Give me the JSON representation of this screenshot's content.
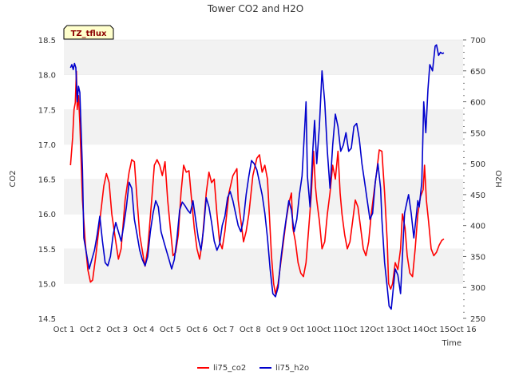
{
  "chart_data": {
    "type": "line",
    "title": "Tower CO2 and H2O",
    "badge": "TZ_tflux",
    "xlabel": "Time",
    "ylabel_left": "CO2",
    "ylabel_right": "H2O",
    "x_ticks": [
      {
        "day": 1,
        "label": "Oct 1"
      },
      {
        "day": 2,
        "label": "Oct 2"
      },
      {
        "day": 3,
        "label": "Oct 3"
      },
      {
        "day": 4,
        "label": "Oct 4"
      },
      {
        "day": 5,
        "label": "Oct 5"
      },
      {
        "day": 6,
        "label": "Oct 6"
      },
      {
        "day": 7,
        "label": "Oct 7"
      },
      {
        "day": 8,
        "label": "Oct 8"
      },
      {
        "day": 9,
        "label": "Oct 9"
      },
      {
        "day": 10,
        "label": "Oct 10"
      },
      {
        "day": 11,
        "label": "Oct 11"
      },
      {
        "day": 12,
        "label": "Oct 12"
      },
      {
        "day": 13,
        "label": "Oct 13"
      },
      {
        "day": 14,
        "label": "Oct 14"
      },
      {
        "day": 15,
        "label": "Oct 15"
      },
      {
        "day": 16,
        "label": "Oct 16"
      }
    ],
    "xlim": [
      1,
      16
    ],
    "ylim_left": [
      14.5,
      18.5
    ],
    "ylim_right": [
      250,
      700
    ],
    "yticks_left": [
      "14.5",
      "15.0",
      "15.5",
      "16.0",
      "16.5",
      "17.0",
      "17.5",
      "18.0",
      "18.5"
    ],
    "yticks_right": [
      "250",
      "300",
      "350",
      "400",
      "450",
      "500",
      "550",
      "600",
      "650",
      "700"
    ],
    "grid": "horizontal bands",
    "legend_position": "bottom-center",
    "series": [
      {
        "name": "li75_co2",
        "axis": "left",
        "color": "#ff0000",
        "points": [
          [
            1.25,
            16.7
          ],
          [
            1.33,
            17.1
          ],
          [
            1.38,
            17.5
          ],
          [
            1.43,
            17.6
          ],
          [
            1.47,
            18.05
          ],
          [
            1.5,
            17.5
          ],
          [
            1.55,
            17.7
          ],
          [
            1.6,
            17.3
          ],
          [
            1.7,
            16.2
          ],
          [
            1.8,
            15.6
          ],
          [
            1.9,
            15.2
          ],
          [
            2.0,
            15.02
          ],
          [
            2.08,
            15.05
          ],
          [
            2.2,
            15.4
          ],
          [
            2.35,
            15.9
          ],
          [
            2.5,
            16.4
          ],
          [
            2.6,
            16.58
          ],
          [
            2.7,
            16.45
          ],
          [
            2.8,
            16.0
          ],
          [
            2.95,
            15.6
          ],
          [
            3.05,
            15.35
          ],
          [
            3.15,
            15.5
          ],
          [
            3.3,
            16.2
          ],
          [
            3.45,
            16.6
          ],
          [
            3.55,
            16.78
          ],
          [
            3.65,
            16.75
          ],
          [
            3.75,
            16.2
          ],
          [
            3.85,
            15.7
          ],
          [
            4.0,
            15.35
          ],
          [
            4.05,
            15.25
          ],
          [
            4.15,
            15.5
          ],
          [
            4.3,
            16.2
          ],
          [
            4.4,
            16.7
          ],
          [
            4.5,
            16.78
          ],
          [
            4.6,
            16.7
          ],
          [
            4.7,
            16.55
          ],
          [
            4.8,
            16.75
          ],
          [
            4.9,
            16.2
          ],
          [
            5.0,
            15.8
          ],
          [
            5.1,
            15.4
          ],
          [
            5.2,
            15.45
          ],
          [
            5.3,
            15.7
          ],
          [
            5.4,
            16.3
          ],
          [
            5.5,
            16.7
          ],
          [
            5.6,
            16.6
          ],
          [
            5.7,
            16.62
          ],
          [
            5.8,
            16.2
          ],
          [
            5.9,
            15.8
          ],
          [
            6.0,
            15.5
          ],
          [
            6.1,
            15.35
          ],
          [
            6.2,
            15.6
          ],
          [
            6.35,
            16.3
          ],
          [
            6.45,
            16.6
          ],
          [
            6.55,
            16.45
          ],
          [
            6.65,
            16.5
          ],
          [
            6.75,
            16.0
          ],
          [
            6.85,
            15.6
          ],
          [
            6.95,
            15.5
          ],
          [
            7.05,
            15.75
          ],
          [
            7.2,
            16.3
          ],
          [
            7.35,
            16.55
          ],
          [
            7.5,
            16.65
          ],
          [
            7.55,
            16.2
          ],
          [
            7.65,
            15.9
          ],
          [
            7.75,
            15.6
          ],
          [
            7.85,
            15.75
          ],
          [
            7.95,
            16.0
          ],
          [
            8.1,
            16.55
          ],
          [
            8.25,
            16.8
          ],
          [
            8.35,
            16.85
          ],
          [
            8.45,
            16.6
          ],
          [
            8.55,
            16.7
          ],
          [
            8.65,
            16.5
          ],
          [
            8.72,
            16.0
          ],
          [
            8.8,
            15.4
          ],
          [
            8.88,
            15.0
          ],
          [
            8.95,
            14.85
          ],
          [
            9.05,
            15.0
          ],
          [
            9.15,
            15.3
          ],
          [
            9.25,
            15.6
          ],
          [
            9.35,
            15.9
          ],
          [
            9.45,
            16.15
          ],
          [
            9.55,
            16.3
          ],
          [
            9.6,
            15.8
          ],
          [
            9.7,
            15.6
          ],
          [
            9.8,
            15.3
          ],
          [
            9.9,
            15.15
          ],
          [
            10.0,
            15.1
          ],
          [
            10.1,
            15.3
          ],
          [
            10.2,
            15.8
          ],
          [
            10.3,
            16.3
          ],
          [
            10.38,
            16.9
          ],
          [
            10.45,
            16.4
          ],
          [
            10.5,
            16.2
          ],
          [
            10.6,
            15.9
          ],
          [
            10.7,
            15.5
          ],
          [
            10.8,
            15.6
          ],
          [
            10.9,
            16.0
          ],
          [
            11.0,
            16.3
          ],
          [
            11.1,
            16.7
          ],
          [
            11.2,
            16.5
          ],
          [
            11.3,
            16.9
          ],
          [
            11.38,
            16.3
          ],
          [
            11.45,
            16.0
          ],
          [
            11.55,
            15.7
          ],
          [
            11.65,
            15.5
          ],
          [
            11.75,
            15.6
          ],
          [
            11.85,
            15.9
          ],
          [
            11.95,
            16.2
          ],
          [
            12.05,
            16.1
          ],
          [
            12.15,
            15.8
          ],
          [
            12.25,
            15.5
          ],
          [
            12.35,
            15.4
          ],
          [
            12.45,
            15.6
          ],
          [
            12.55,
            16.0
          ],
          [
            12.65,
            16.3
          ],
          [
            12.75,
            16.6
          ],
          [
            12.85,
            16.92
          ],
          [
            12.95,
            16.9
          ],
          [
            13.05,
            16.3
          ],
          [
            13.15,
            15.6
          ],
          [
            13.2,
            15.0
          ],
          [
            13.28,
            14.92
          ],
          [
            13.35,
            15.0
          ],
          [
            13.45,
            15.3
          ],
          [
            13.55,
            15.2
          ],
          [
            13.65,
            15.5
          ],
          [
            13.72,
            16.0
          ],
          [
            13.82,
            15.8
          ],
          [
            13.9,
            15.4
          ],
          [
            14.0,
            15.15
          ],
          [
            14.1,
            15.1
          ],
          [
            14.2,
            15.5
          ],
          [
            14.3,
            16.0
          ],
          [
            14.4,
            16.25
          ],
          [
            14.5,
            16.35
          ],
          [
            14.55,
            16.7
          ],
          [
            14.62,
            16.2
          ],
          [
            14.7,
            15.9
          ],
          [
            14.8,
            15.5
          ],
          [
            14.9,
            15.4
          ],
          [
            15.0,
            15.45
          ],
          [
            15.1,
            15.55
          ],
          [
            15.2,
            15.62
          ],
          [
            15.28,
            15.64
          ]
        ]
      },
      {
        "name": "li75_h2o",
        "axis": "right",
        "color": "#0000cc",
        "points": [
          [
            1.25,
            655
          ],
          [
            1.3,
            660
          ],
          [
            1.35,
            652
          ],
          [
            1.4,
            662
          ],
          [
            1.45,
            655
          ],
          [
            1.5,
            600
          ],
          [
            1.55,
            625
          ],
          [
            1.6,
            615
          ],
          [
            1.7,
            490
          ],
          [
            1.75,
            380
          ],
          [
            1.85,
            355
          ],
          [
            1.95,
            330
          ],
          [
            2.05,
            345
          ],
          [
            2.15,
            360
          ],
          [
            2.25,
            385
          ],
          [
            2.35,
            415
          ],
          [
            2.45,
            375
          ],
          [
            2.55,
            340
          ],
          [
            2.65,
            335
          ],
          [
            2.75,
            350
          ],
          [
            2.85,
            385
          ],
          [
            2.95,
            405
          ],
          [
            3.05,
            390
          ],
          [
            3.15,
            375
          ],
          [
            3.25,
            400
          ],
          [
            3.35,
            430
          ],
          [
            3.45,
            470
          ],
          [
            3.55,
            460
          ],
          [
            3.65,
            410
          ],
          [
            3.75,
            385
          ],
          [
            3.85,
            360
          ],
          [
            3.95,
            345
          ],
          [
            4.05,
            335
          ],
          [
            4.15,
            350
          ],
          [
            4.25,
            390
          ],
          [
            4.35,
            420
          ],
          [
            4.45,
            440
          ],
          [
            4.55,
            430
          ],
          [
            4.65,
            390
          ],
          [
            4.75,
            375
          ],
          [
            4.85,
            360
          ],
          [
            4.95,
            345
          ],
          [
            5.05,
            330
          ],
          [
            5.15,
            345
          ],
          [
            5.25,
            380
          ],
          [
            5.35,
            425
          ],
          [
            5.45,
            438
          ],
          [
            5.55,
            432
          ],
          [
            5.65,
            425
          ],
          [
            5.75,
            420
          ],
          [
            5.85,
            440
          ],
          [
            5.95,
            410
          ],
          [
            6.05,
            380
          ],
          [
            6.15,
            360
          ],
          [
            6.25,
            395
          ],
          [
            6.35,
            445
          ],
          [
            6.45,
            430
          ],
          [
            6.55,
            405
          ],
          [
            6.65,
            375
          ],
          [
            6.75,
            360
          ],
          [
            6.85,
            370
          ],
          [
            6.95,
            400
          ],
          [
            7.05,
            415
          ],
          [
            7.15,
            445
          ],
          [
            7.25,
            455
          ],
          [
            7.35,
            440
          ],
          [
            7.45,
            420
          ],
          [
            7.55,
            400
          ],
          [
            7.65,
            390
          ],
          [
            7.75,
            410
          ],
          [
            7.85,
            450
          ],
          [
            7.95,
            480
          ],
          [
            8.05,
            505
          ],
          [
            8.15,
            500
          ],
          [
            8.25,
            490
          ],
          [
            8.35,
            470
          ],
          [
            8.45,
            450
          ],
          [
            8.55,
            420
          ],
          [
            8.65,
            380
          ],
          [
            8.75,
            330
          ],
          [
            8.85,
            290
          ],
          [
            8.95,
            285
          ],
          [
            9.05,
            300
          ],
          [
            9.15,
            345
          ],
          [
            9.25,
            380
          ],
          [
            9.35,
            410
          ],
          [
            9.45,
            440
          ],
          [
            9.55,
            425
          ],
          [
            9.65,
            390
          ],
          [
            9.75,
            410
          ],
          [
            9.85,
            450
          ],
          [
            9.95,
            480
          ],
          [
            10.05,
            560
          ],
          [
            10.1,
            600
          ],
          [
            10.15,
            480
          ],
          [
            10.25,
            430
          ],
          [
            10.35,
            520
          ],
          [
            10.42,
            570
          ],
          [
            10.5,
            500
          ],
          [
            10.6,
            560
          ],
          [
            10.7,
            650
          ],
          [
            10.8,
            600
          ],
          [
            10.9,
            520
          ],
          [
            11.0,
            460
          ],
          [
            11.1,
            530
          ],
          [
            11.2,
            580
          ],
          [
            11.3,
            560
          ],
          [
            11.4,
            520
          ],
          [
            11.5,
            530
          ],
          [
            11.6,
            550
          ],
          [
            11.7,
            520
          ],
          [
            11.8,
            525
          ],
          [
            11.9,
            560
          ],
          [
            12.0,
            565
          ],
          [
            12.1,
            540
          ],
          [
            12.2,
            500
          ],
          [
            12.3,
            470
          ],
          [
            12.4,
            440
          ],
          [
            12.5,
            410
          ],
          [
            12.6,
            420
          ],
          [
            12.7,
            470
          ],
          [
            12.8,
            500
          ],
          [
            12.9,
            460
          ],
          [
            12.95,
            410
          ],
          [
            13.05,
            340
          ],
          [
            13.15,
            300
          ],
          [
            13.22,
            270
          ],
          [
            13.3,
            265
          ],
          [
            13.38,
            300
          ],
          [
            13.45,
            330
          ],
          [
            13.55,
            320
          ],
          [
            13.65,
            290
          ],
          [
            13.72,
            350
          ],
          [
            13.8,
            420
          ],
          [
            13.9,
            440
          ],
          [
            13.95,
            450
          ],
          [
            14.05,
            420
          ],
          [
            14.15,
            380
          ],
          [
            14.25,
            420
          ],
          [
            14.3,
            440
          ],
          [
            14.35,
            430
          ],
          [
            14.45,
            470
          ],
          [
            14.52,
            600
          ],
          [
            14.6,
            550
          ],
          [
            14.68,
            620
          ],
          [
            14.75,
            660
          ],
          [
            14.85,
            650
          ],
          [
            14.95,
            690
          ],
          [
            15.0,
            692
          ],
          [
            15.08,
            675
          ],
          [
            15.15,
            680
          ],
          [
            15.22,
            678
          ],
          [
            15.28,
            679
          ]
        ]
      }
    ]
  }
}
